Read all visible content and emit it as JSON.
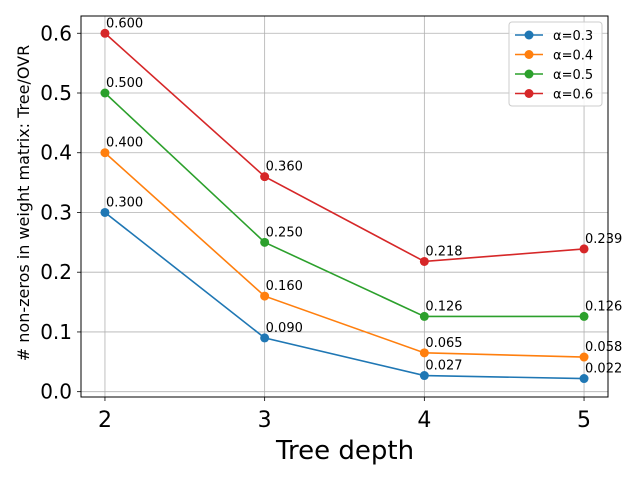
{
  "chart_data": {
    "type": "line",
    "title": "",
    "xlabel": "Tree depth",
    "ylabel": "# non-zeros in weight matrix: Tree/OVR",
    "x": [
      2,
      3,
      4,
      5
    ],
    "x_tick_labels": [
      "2",
      "3",
      "4",
      "5"
    ],
    "xlim": [
      1.85,
      5.15
    ],
    "ylim": [
      -0.0089,
      0.6289
    ],
    "y_ticks": [
      0.0,
      0.1,
      0.2,
      0.3,
      0.4,
      0.5,
      0.6
    ],
    "y_tick_labels": [
      "0.0",
      "0.1",
      "0.2",
      "0.3",
      "0.4",
      "0.5",
      "0.6"
    ],
    "grid": true,
    "legend_position": "top-right",
    "series": [
      {
        "name": "α=0.3",
        "color": "#1f77b4",
        "values": [
          0.3,
          0.09,
          0.027,
          0.022
        ],
        "labels": [
          "0.300",
          "0.090",
          "0.027",
          "0.022"
        ]
      },
      {
        "name": "α=0.4",
        "color": "#ff7f0e",
        "values": [
          0.4,
          0.16,
          0.065,
          0.058
        ],
        "labels": [
          "0.400",
          "0.160",
          "0.065",
          "0.058"
        ]
      },
      {
        "name": "α=0.5",
        "color": "#2ca02c",
        "values": [
          0.5,
          0.25,
          0.126,
          0.126
        ],
        "labels": [
          "0.500",
          "0.250",
          "0.126",
          "0.126"
        ]
      },
      {
        "name": "α=0.6",
        "color": "#d62728",
        "values": [
          0.6,
          0.36,
          0.218,
          0.239
        ],
        "labels": [
          "0.600",
          "0.360",
          "0.218",
          "0.239"
        ]
      }
    ]
  }
}
